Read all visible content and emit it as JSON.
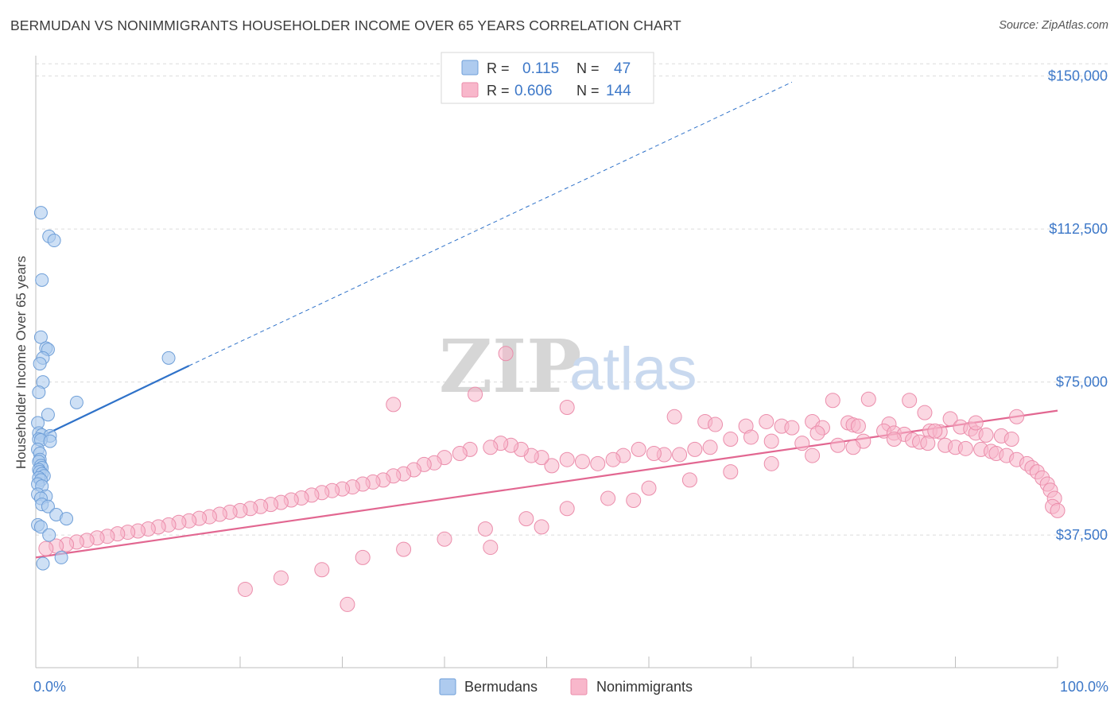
{
  "header": {
    "title": "BERMUDAN VS NONIMMIGRANTS HOUSEHOLDER INCOME OVER 65 YEARS CORRELATION CHART",
    "source": "Source: ZipAtlas.com"
  },
  "watermark": {
    "zip": "ZIP",
    "atlas": "atlas"
  },
  "legend": {
    "rows": [
      {
        "r_label": "R =",
        "r_value": "0.115",
        "n_label": "N =",
        "n_value": "47",
        "color": "#aecbef"
      },
      {
        "r_label": "R =",
        "r_value": "0.606",
        "n_label": "N =",
        "n_value": "144",
        "color": "#f8b7cb"
      }
    ]
  },
  "bottom_legend": {
    "items": [
      {
        "label": "Bermudans",
        "color": "#aecbef"
      },
      {
        "label": "Nonimmigrants",
        "color": "#f8b7cb"
      }
    ]
  },
  "colors": {
    "blue_fill": "#aecbef",
    "blue_stroke": "#6f9fd8",
    "blue_line": "#2f72c9",
    "pink_fill": "#f8b7cb",
    "pink_stroke": "#eb8dab",
    "pink_line": "#e26791",
    "grid": "#dcdcdc",
    "tick_label": "#3d78c8"
  },
  "chart_data": {
    "type": "scatter",
    "title": "BERMUDAN VS NONIMMIGRANTS HOUSEHOLDER INCOME OVER 65 YEARS CORRELATION CHART",
    "xlabel": "",
    "ylabel": "Householder Income Over 65 years",
    "xlim": [
      0,
      100
    ],
    "ylim": [
      5000,
      155000
    ],
    "x_tick_labels": [
      {
        "value": 0,
        "label": "0.0%"
      },
      {
        "value": 100,
        "label": "100.0%"
      }
    ],
    "y_ticks": [
      {
        "value": 37500,
        "label": "$37,500"
      },
      {
        "value": 75000,
        "label": "$75,000"
      },
      {
        "value": 112500,
        "label": "$112,500"
      },
      {
        "value": 150000,
        "label": "$150,000"
      }
    ],
    "grid": true,
    "series": [
      {
        "name": "Bermudans",
        "R": 0.115,
        "N": 47,
        "trendline": {
          "x": [
            0,
            15
          ],
          "y": [
            61000,
            79000
          ],
          "dashed_extension_to": [
            74,
            148500
          ]
        },
        "points": [
          [
            0.5,
            116500
          ],
          [
            1.3,
            110700
          ],
          [
            1.8,
            109700
          ],
          [
            0.6,
            100000
          ],
          [
            0.5,
            86000
          ],
          [
            1.0,
            83300
          ],
          [
            1.2,
            83000
          ],
          [
            0.7,
            80900
          ],
          [
            0.4,
            79500
          ],
          [
            13.0,
            80900
          ],
          [
            0.7,
            75000
          ],
          [
            0.3,
            72500
          ],
          [
            4.0,
            70000
          ],
          [
            1.2,
            67000
          ],
          [
            0.2,
            65000
          ],
          [
            0.3,
            62500
          ],
          [
            0.6,
            62000
          ],
          [
            1.4,
            61800
          ],
          [
            0.3,
            61000
          ],
          [
            0.5,
            60800
          ],
          [
            1.4,
            60500
          ],
          [
            0.2,
            58500
          ],
          [
            0.4,
            57500
          ],
          [
            0.4,
            56000
          ],
          [
            0.3,
            55500
          ],
          [
            0.5,
            54500
          ],
          [
            0.6,
            54000
          ],
          [
            0.3,
            53500
          ],
          [
            0.4,
            53000
          ],
          [
            0.6,
            52500
          ],
          [
            0.8,
            52000
          ],
          [
            0.3,
            51500
          ],
          [
            0.5,
            51000
          ],
          [
            0.2,
            50000
          ],
          [
            0.6,
            49500
          ],
          [
            0.2,
            47500
          ],
          [
            1.0,
            47000
          ],
          [
            0.5,
            46500
          ],
          [
            0.6,
            45000
          ],
          [
            1.2,
            44500
          ],
          [
            2.0,
            42500
          ],
          [
            3.0,
            41500
          ],
          [
            0.2,
            40000
          ],
          [
            0.5,
            39500
          ],
          [
            1.3,
            37500
          ],
          [
            2.5,
            32000
          ],
          [
            0.7,
            30500
          ]
        ]
      },
      {
        "name": "Nonimmigrants",
        "R": 0.606,
        "N": 144,
        "trendline": {
          "x": [
            0,
            100
          ],
          "y": [
            32000,
            68000
          ]
        },
        "points": [
          [
            46,
            82000
          ],
          [
            43,
            72000
          ],
          [
            35,
            69500
          ],
          [
            52,
            68800
          ],
          [
            81.5,
            70800
          ],
          [
            85.5,
            70500
          ],
          [
            78,
            70500
          ],
          [
            87,
            67500
          ],
          [
            89.5,
            66000
          ],
          [
            62.5,
            66500
          ],
          [
            65.5,
            65300
          ],
          [
            71.5,
            65300
          ],
          [
            76,
            65300
          ],
          [
            79.5,
            65000
          ],
          [
            80,
            64500
          ],
          [
            83.5,
            64700
          ],
          [
            73,
            64200
          ],
          [
            74,
            63800
          ],
          [
            66.5,
            64600
          ],
          [
            69.5,
            64200
          ],
          [
            77,
            63800
          ],
          [
            83,
            63000
          ],
          [
            84,
            62500
          ],
          [
            85,
            62200
          ],
          [
            87.5,
            63000
          ],
          [
            88.5,
            62800
          ],
          [
            90.5,
            64000
          ],
          [
            91.5,
            63500
          ],
          [
            92,
            62500
          ],
          [
            93,
            62000
          ],
          [
            94.5,
            61800
          ],
          [
            95.5,
            61000
          ],
          [
            85.8,
            60800
          ],
          [
            86.5,
            60300
          ],
          [
            87.3,
            60000
          ],
          [
            89,
            59500
          ],
          [
            90,
            59000
          ],
          [
            91,
            58700
          ],
          [
            92.5,
            58500
          ],
          [
            93.5,
            58000
          ],
          [
            94,
            57500
          ],
          [
            95,
            57000
          ],
          [
            96,
            56000
          ],
          [
            97,
            55000
          ],
          [
            97.5,
            54000
          ],
          [
            98,
            53000
          ],
          [
            98.5,
            51500
          ],
          [
            99,
            50000
          ],
          [
            99.3,
            48500
          ],
          [
            99.7,
            46500
          ],
          [
            99.5,
            44500
          ],
          [
            100,
            43500
          ],
          [
            76.5,
            62500
          ],
          [
            80.5,
            64200
          ],
          [
            81,
            60500
          ],
          [
            78.5,
            59500
          ],
          [
            75,
            60000
          ],
          [
            72,
            60500
          ],
          [
            70,
            61500
          ],
          [
            68,
            61000
          ],
          [
            66,
            59000
          ],
          [
            64.5,
            58500
          ],
          [
            63,
            57200
          ],
          [
            61.5,
            57200
          ],
          [
            60.5,
            57500
          ],
          [
            59,
            58500
          ],
          [
            57.5,
            57000
          ],
          [
            56.5,
            56000
          ],
          [
            55,
            55000
          ],
          [
            53.5,
            55500
          ],
          [
            52,
            56000
          ],
          [
            50.5,
            54500
          ],
          [
            49.5,
            56500
          ],
          [
            48.5,
            57000
          ],
          [
            47.5,
            58500
          ],
          [
            46.5,
            59500
          ],
          [
            45.5,
            60000
          ],
          [
            44.5,
            59000
          ],
          [
            42.5,
            58500
          ],
          [
            41.5,
            57500
          ],
          [
            40,
            56500
          ],
          [
            39,
            55200
          ],
          [
            38,
            54800
          ],
          [
            37,
            53500
          ],
          [
            36,
            52500
          ],
          [
            35,
            52000
          ],
          [
            34,
            51000
          ],
          [
            33,
            50500
          ],
          [
            32,
            50000
          ],
          [
            31,
            49300
          ],
          [
            30,
            48800
          ],
          [
            29,
            48400
          ],
          [
            28,
            47900
          ],
          [
            27,
            47300
          ],
          [
            26,
            46600
          ],
          [
            25,
            46100
          ],
          [
            24,
            45500
          ],
          [
            23,
            45000
          ],
          [
            22,
            44500
          ],
          [
            21,
            44000
          ],
          [
            20,
            43500
          ],
          [
            19,
            43100
          ],
          [
            18,
            42600
          ],
          [
            17,
            42000
          ],
          [
            16,
            41600
          ],
          [
            15,
            41000
          ],
          [
            14,
            40600
          ],
          [
            13,
            40000
          ],
          [
            12,
            39500
          ],
          [
            11,
            39000
          ],
          [
            10,
            38500
          ],
          [
            9,
            38200
          ],
          [
            8,
            37800
          ],
          [
            7,
            37200
          ],
          [
            6,
            36800
          ],
          [
            5,
            36200
          ],
          [
            4,
            35800
          ],
          [
            3,
            35200
          ],
          [
            2,
            34800
          ],
          [
            1,
            34200
          ],
          [
            20.5,
            24200
          ],
          [
            24,
            27000
          ],
          [
            28,
            29000
          ],
          [
            32,
            32000
          ],
          [
            36,
            34000
          ],
          [
            40,
            36500
          ],
          [
            44,
            39000
          ],
          [
            48,
            41500
          ],
          [
            52,
            44000
          ],
          [
            56,
            46500
          ],
          [
            60,
            49000
          ],
          [
            64,
            51000
          ],
          [
            68,
            53000
          ],
          [
            72,
            55000
          ],
          [
            76,
            57000
          ],
          [
            80,
            59000
          ],
          [
            84,
            61000
          ],
          [
            88,
            63000
          ],
          [
            92,
            65000
          ],
          [
            96,
            66500
          ],
          [
            30.5,
            20500
          ],
          [
            44.5,
            34500
          ],
          [
            49.5,
            39500
          ],
          [
            58.5,
            46000
          ]
        ]
      }
    ]
  }
}
